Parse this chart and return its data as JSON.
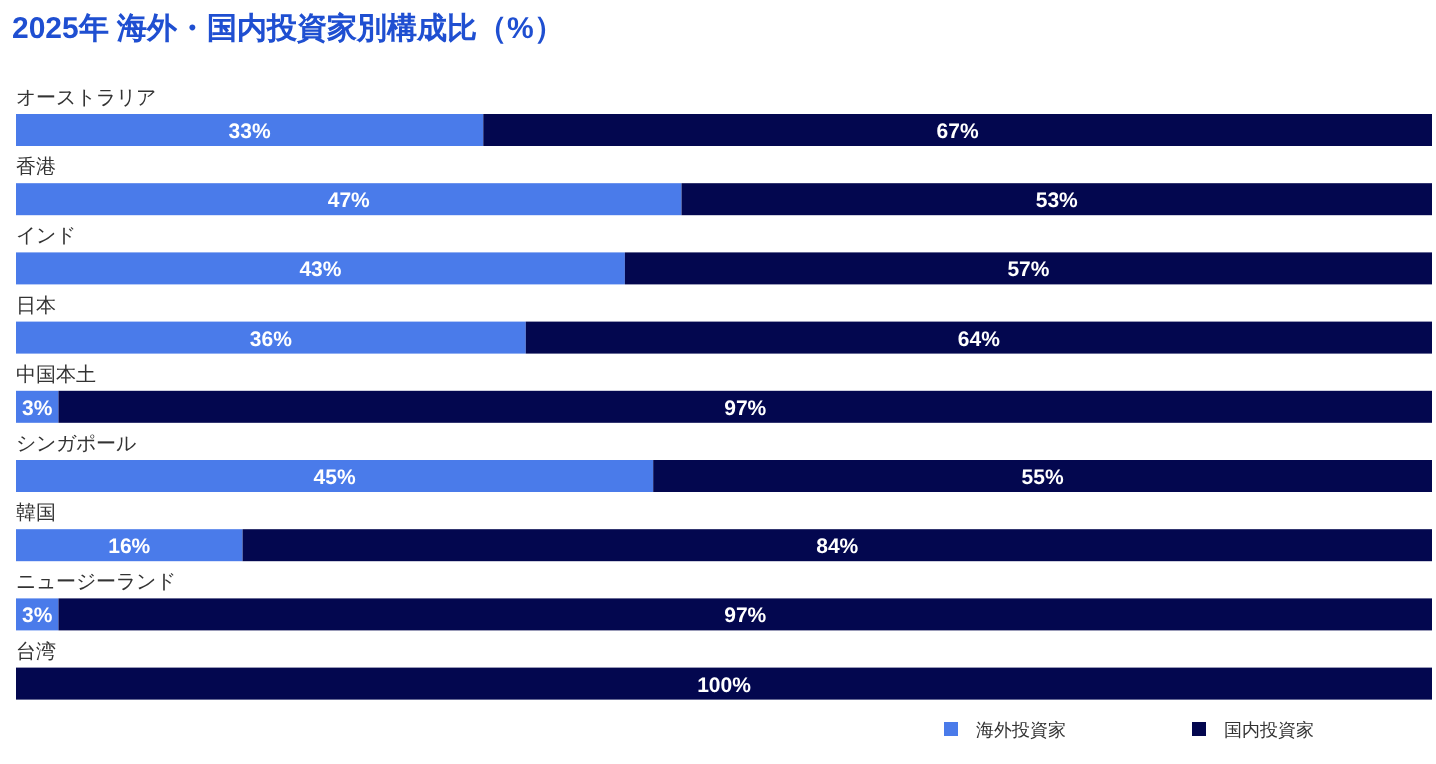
{
  "chart_data": {
    "type": "bar",
    "title": "2025年 海外・国内投資家別構成比（%）",
    "orientation": "horizontal",
    "stacked": true,
    "legend": "bottom right",
    "categories": [
      "オーストラリア",
      "香港",
      "インド",
      "日本",
      "中国本土",
      "シンガポール",
      "韓国",
      "ニュージーランド",
      "台湾"
    ],
    "series": [
      {
        "name": "海外投資家",
        "color": "#4a7bea",
        "values": [
          33,
          47,
          43,
          36,
          3,
          45,
          16,
          3,
          0
        ],
        "value_labels": [
          "33%",
          "47%",
          "43%",
          "36%",
          "3%",
          "45%",
          "16%",
          "3%",
          null
        ]
      },
      {
        "name": "国内投資家",
        "color": "#03074f",
        "values": [
          67,
          53,
          57,
          64,
          97,
          55,
          84,
          97,
          100
        ],
        "value_labels": [
          "67%",
          "53%",
          "57%",
          "64%",
          "97%",
          "55%",
          "84%",
          "97%",
          "100%"
        ]
      }
    ]
  }
}
